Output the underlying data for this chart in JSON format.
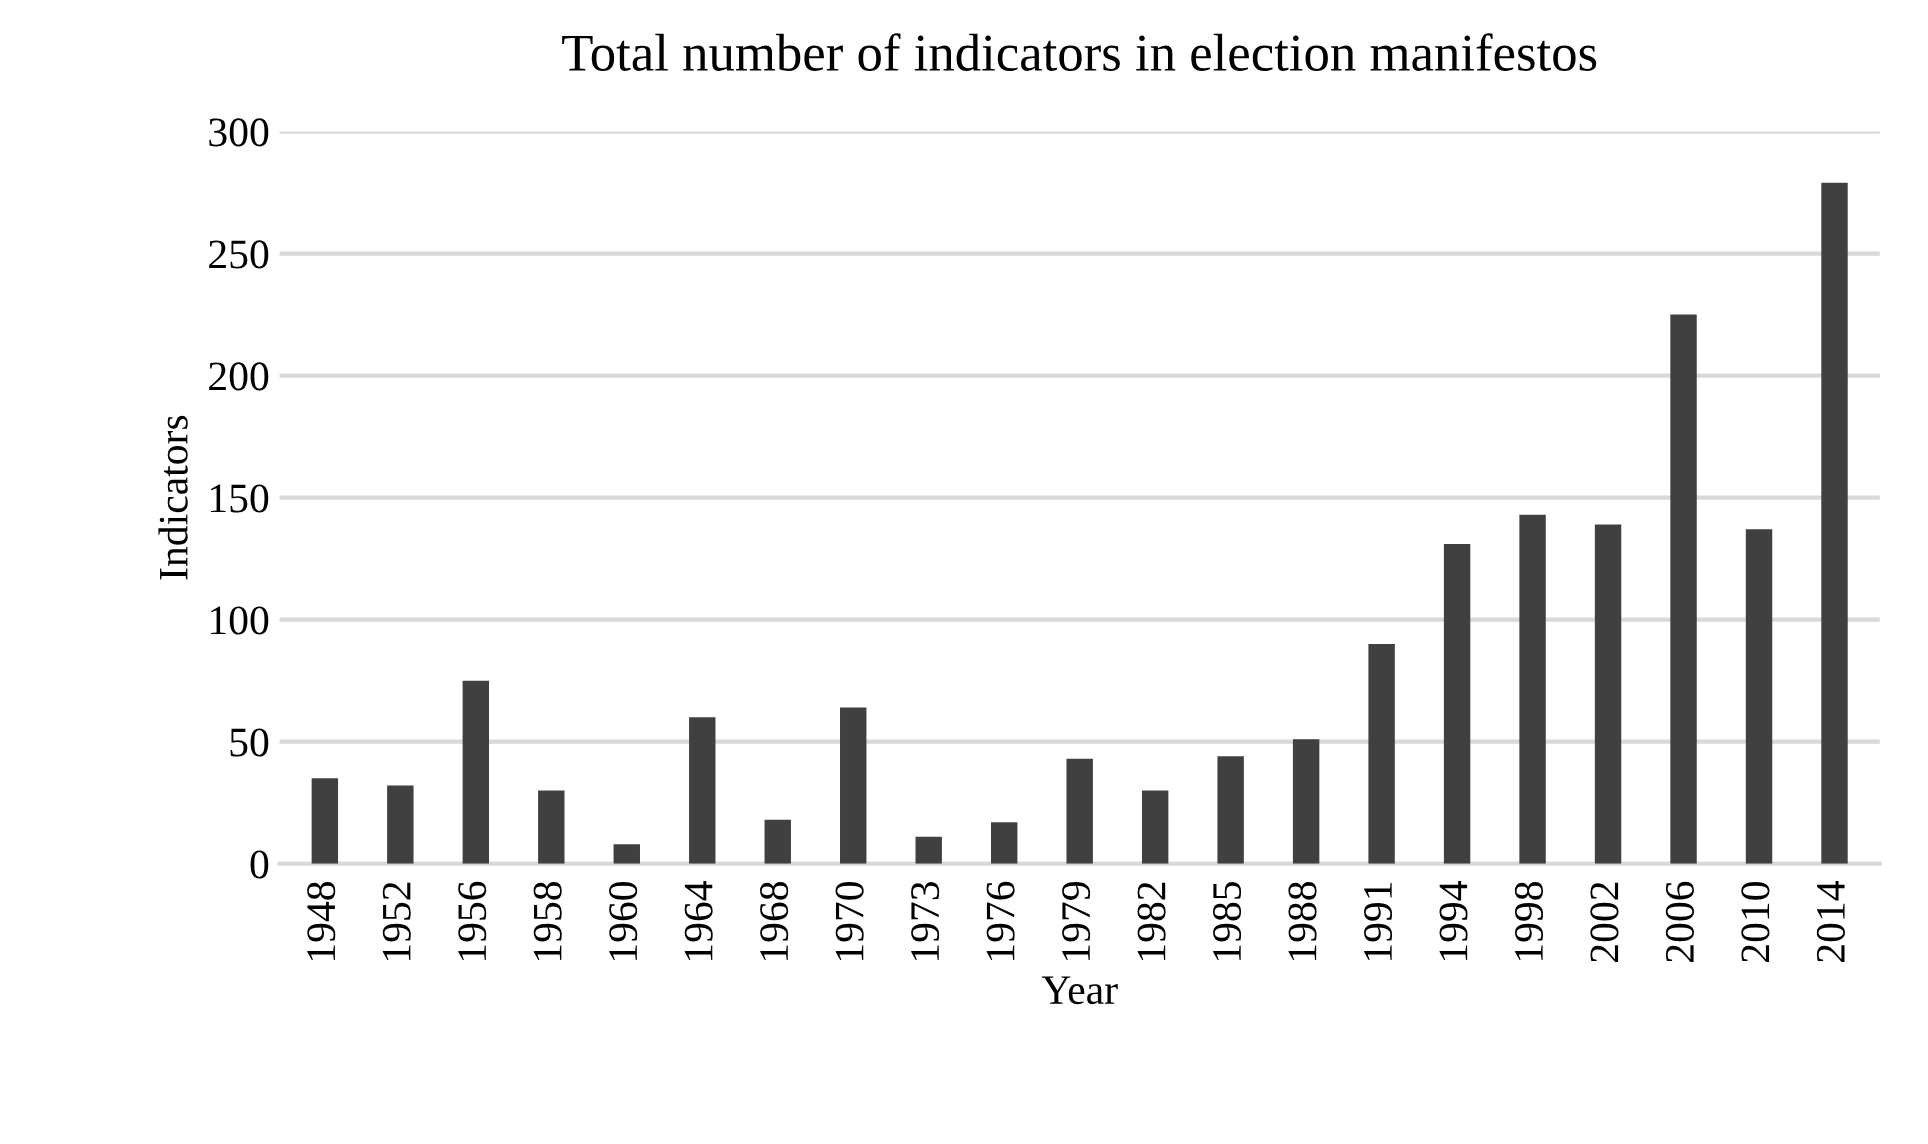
{
  "chart_data": {
    "type": "bar",
    "title": "Total number of indicators in election manifestos",
    "xlabel": "Year",
    "ylabel": "Indicators",
    "categories": [
      "1948",
      "1952",
      "1956",
      "1958",
      "1960",
      "1964",
      "1968",
      "1970",
      "1973",
      "1976",
      "1979",
      "1982",
      "1985",
      "1988",
      "1991",
      "1994",
      "1998",
      "2002",
      "2006",
      "2010",
      "2014"
    ],
    "values": [
      35,
      32,
      75,
      30,
      8,
      60,
      18,
      64,
      11,
      17,
      43,
      30,
      44,
      51,
      90,
      131,
      143,
      139,
      225,
      137,
      279
    ],
    "color": "#404040",
    "ylim": [
      0,
      300
    ],
    "yticks": [
      0,
      50,
      100,
      150,
      200,
      250,
      300
    ],
    "grid": "y",
    "legend": false
  }
}
